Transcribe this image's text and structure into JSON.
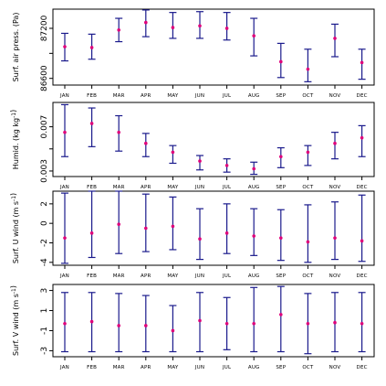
{
  "chart_data": [
    {
      "type": "errorbar",
      "ylabel": "Surf. air press. (Pa)",
      "ylabel_parts": [
        {
          "t": "Surf. air press. (Pa)"
        }
      ],
      "categories": [
        "JAN",
        "FEB",
        "MAR",
        "APR",
        "MAY",
        "JUN",
        "JUL",
        "AUG",
        "SEP",
        "OCT",
        "NOV",
        "DEC"
      ],
      "ylim": [
        86520,
        87430
      ],
      "yticks": [
        86600,
        87200
      ],
      "minor_yticks": [
        86900
      ],
      "ytick_labels": [
        "86600",
        "87200"
      ],
      "mean": [
        86980,
        86970,
        87180,
        87270,
        87210,
        87230,
        87200,
        87110,
        86800,
        86710,
        87080,
        86790
      ],
      "lower": [
        86810,
        86830,
        87040,
        87100,
        87080,
        87080,
        87060,
        86870,
        86610,
        86560,
        86860,
        86590
      ],
      "upper": [
        87140,
        87130,
        87320,
        87420,
        87390,
        87400,
        87390,
        87320,
        87020,
        86950,
        87250,
        86950
      ]
    },
    {
      "type": "errorbar",
      "ylabel": "Humid. (kg kg-1)",
      "ylabel_parts": [
        {
          "t": "Humid. (kg kg"
        },
        {
          "t": "-1",
          "sup": true
        },
        {
          "t": ")"
        }
      ],
      "categories": [
        "JAN",
        "FEB",
        "MAR",
        "APR",
        "MAY",
        "JUN",
        "JUL",
        "AUG",
        "SEP",
        "OCT",
        "NOV",
        "DEC"
      ],
      "ylim": [
        0.0025,
        0.0092
      ],
      "yticks": [
        0.003,
        0.007
      ],
      "minor_yticks": [
        0.005
      ],
      "ytick_labels": [
        "0.003",
        "0.007"
      ],
      "mean": [
        0.0065,
        0.0073,
        0.0065,
        0.0055,
        0.0047,
        0.0039,
        0.0035,
        0.0032,
        0.0043,
        0.0047,
        0.0055,
        0.006
      ],
      "lower": [
        0.0043,
        0.0052,
        0.0048,
        0.0043,
        0.0037,
        0.0031,
        0.0029,
        0.0027,
        0.0033,
        0.0035,
        0.0041,
        0.0043
      ],
      "upper": [
        0.009,
        0.0087,
        0.008,
        0.0064,
        0.0053,
        0.0044,
        0.0041,
        0.0038,
        0.0051,
        0.0053,
        0.0065,
        0.0071
      ]
    },
    {
      "type": "errorbar",
      "ylabel": "Surf. U wind (m s-1)",
      "ylabel_parts": [
        {
          "t": "Surf. U wind (m s"
        },
        {
          "t": "-1",
          "sup": true
        },
        {
          "t": ")"
        }
      ],
      "categories": [
        "JAN",
        "FEB",
        "MAR",
        "APR",
        "MAY",
        "JUN",
        "JUL",
        "AUG",
        "SEP",
        "OCT",
        "NOV",
        "DEC"
      ],
      "ylim": [
        -4.3,
        3.3
      ],
      "yticks": [
        -4,
        -2,
        0,
        2
      ],
      "minor_yticks": [],
      "ytick_labels": [
        "-4",
        "-2",
        "0",
        "2"
      ],
      "mean": [
        -1.5,
        -1.0,
        -0.1,
        -0.5,
        -0.3,
        -1.6,
        -1.0,
        -1.3,
        -1.5,
        -1.9,
        -1.5,
        -1.8
      ],
      "lower": [
        -4.1,
        -3.5,
        -3.1,
        -2.9,
        -2.7,
        -3.7,
        -3.1,
        -3.3,
        -3.8,
        -4.0,
        -3.7,
        -3.9
      ],
      "upper": [
        3.1,
        3.3,
        3.3,
        3.0,
        2.7,
        1.5,
        2.0,
        1.5,
        1.4,
        1.9,
        2.2,
        2.9
      ]
    },
    {
      "type": "errorbar",
      "ylabel": "Surf. V wind (m s-1)",
      "ylabel_parts": [
        {
          "t": "Surf. V wind (m s"
        },
        {
          "t": "-1",
          "sup": true
        },
        {
          "t": ")"
        }
      ],
      "categories": [
        "JAN",
        "FEB",
        "MAR",
        "APR",
        "MAY",
        "JUN",
        "JUL",
        "AUG",
        "SEP",
        "OCT",
        "NOV",
        "DEC"
      ],
      "ylim": [
        -3.6,
        3.6
      ],
      "yticks": [
        -3,
        -1,
        1,
        3
      ],
      "minor_yticks": [],
      "ytick_labels": [
        "-3",
        "-1",
        "1",
        "3"
      ],
      "mean": [
        -0.3,
        -0.1,
        -0.5,
        -0.5,
        -1.0,
        0.0,
        -0.3,
        -0.3,
        0.6,
        -0.3,
        -0.2,
        -0.3
      ],
      "lower": [
        -3.1,
        -3.1,
        -3.1,
        -3.1,
        -3.1,
        -3.1,
        -2.9,
        -3.1,
        -3.1,
        -3.3,
        -3.1,
        -3.1
      ],
      "upper": [
        2.8,
        2.8,
        2.7,
        2.5,
        1.5,
        2.8,
        2.3,
        3.3,
        3.4,
        2.7,
        2.8,
        2.8
      ]
    }
  ]
}
